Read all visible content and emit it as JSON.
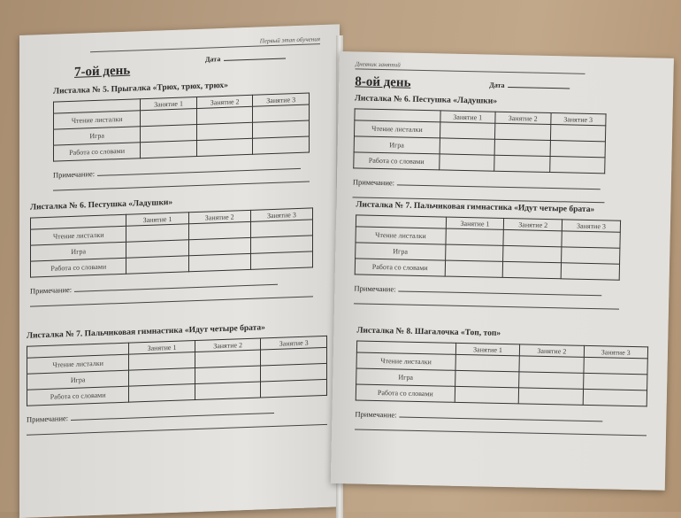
{
  "left_page": {
    "header": "Первый этап обучения",
    "day_title": "7-ой день",
    "date_label": "Дата",
    "sections": [
      {
        "title": "Листалка № 5. Прыгалка «Трюх, трюх, трюх»",
        "columns": [
          "",
          "Занятие 1",
          "Занятие 2",
          "Занятие 3"
        ],
        "rows": [
          "Чтение листалки",
          "Игра",
          "Работа со словами"
        ],
        "note_label": "Примечание:"
      },
      {
        "title": "Листалка № 6. Пестушка «Ладушки»",
        "columns": [
          "",
          "Занятие 1",
          "Занятие 2",
          "Занятие 3"
        ],
        "rows": [
          "Чтение листалки",
          "Игра",
          "Работа со словами"
        ],
        "note_label": "Примечание:"
      },
      {
        "title": "Листалка № 7. Пальчиковая гимнастика «Идут четыре брата»",
        "columns": [
          "",
          "Занятие 1",
          "Занятие 2",
          "Занятие 3"
        ],
        "rows": [
          "Чтение листалки",
          "Игра",
          "Работа со словами"
        ],
        "note_label": "Примечание:"
      }
    ]
  },
  "right_page": {
    "header": "Дневник занятий",
    "day_title": "8-ой день",
    "date_label": "Дата",
    "sections": [
      {
        "title": "Листалка № 6. Пестушка «Ладушки»",
        "columns": [
          "",
          "Занятие 1",
          "Занятие 2",
          "Занятие 3"
        ],
        "rows": [
          "Чтение листалки",
          "Игра",
          "Работа со словами"
        ],
        "note_label": "Примечание:"
      },
      {
        "title": "Листалка № 7. Пальчиковая гимнастика «Идут четыре брата»",
        "columns": [
          "",
          "Занятие 1",
          "Занятие 2",
          "Занятие 3"
        ],
        "rows": [
          "Чтение листалки",
          "Игра",
          "Работа со словами"
        ],
        "note_label": "Примечание:"
      },
      {
        "title": "Листалка № 8. Шагалочка «Топ, топ»",
        "columns": [
          "",
          "Занятие 1",
          "Занятие 2",
          "Занятие 3"
        ],
        "rows": [
          "Чтение листалки",
          "Игра",
          "Работа со словами"
        ],
        "note_label": "Примечание:"
      }
    ]
  }
}
